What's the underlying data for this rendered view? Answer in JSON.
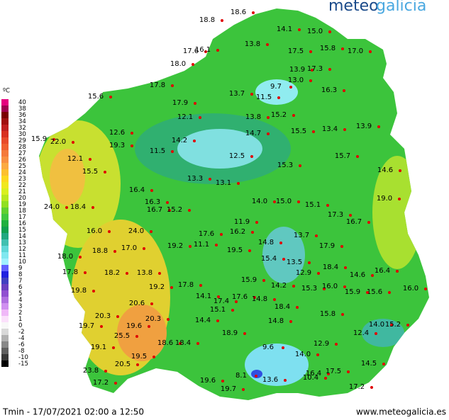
{
  "logo": {
    "part1": "meteo",
    "part2": "galicia"
  },
  "legend": {
    "unit": "ºC",
    "labels": [
      "40",
      "38",
      "36",
      "34",
      "32",
      "30",
      "29",
      "28",
      "27",
      "26",
      "25",
      "24",
      "23",
      "22",
      "21",
      "20",
      "19",
      "18",
      "17",
      "16",
      "15",
      "14",
      "13",
      "12",
      "11",
      "10",
      "9",
      "8",
      "7",
      "6",
      "5",
      "4",
      "3",
      "2",
      "1",
      "0",
      "-2",
      "-4",
      "-6",
      "-8",
      "-10",
      "-15"
    ],
    "colors": [
      "#e6007e",
      "#a0004f",
      "#7a0000",
      "#a01010",
      "#c02020",
      "#d83020",
      "#e84a2a",
      "#f06030",
      "#f47a3a",
      "#f89040",
      "#fbaa40",
      "#fcc030",
      "#fcd820",
      "#f0e820",
      "#d8f020",
      "#b8e820",
      "#90e020",
      "#60d030",
      "#40c840",
      "#20b040",
      "#10a050",
      "#20a880",
      "#40c0b0",
      "#60d8d8",
      "#80e8f0",
      "#a0f0ff",
      "#6060ff",
      "#2020e0",
      "#4040c0",
      "#6a40c0",
      "#9050d0",
      "#b070e0",
      "#d090f0",
      "#f0b8f8",
      "#fbe0fb",
      "#f8f8f8",
      "#d8d8d8",
      "#b0b0b0",
      "#888888",
      "#606060",
      "#383838",
      "#000000"
    ]
  },
  "stations": [
    "18.8",
    "18.6",
    "14.1",
    "15.0",
    "13.8",
    "17.5",
    "15.8",
    "17.0",
    "17.6",
    "16.1",
    "18.0",
    "13.9",
    "17.3",
    "13.0",
    "9.7",
    "16.3",
    "15.6",
    "17.8",
    "13.7",
    "11.5",
    "17.9",
    "15.2",
    "13.8",
    "12.1",
    "14.7",
    "15.5",
    "13.4",
    "13.9",
    "12.6",
    "14.2",
    "15.9",
    "22.0",
    "19.3",
    "11.5",
    "12.5",
    "15.7",
    "12.1",
    "15.3",
    "14.6",
    "15.5",
    "13.3",
    "13.1",
    "16.4",
    "19.0",
    "14.0",
    "15.0",
    "16.3",
    "15.1",
    "24.0",
    "18.4",
    "16.7",
    "15.2",
    "17.3",
    "16.7",
    "11.9",
    "16.0",
    "24.0",
    "16.2",
    "17.6",
    "13.7",
    "11.1",
    "17.0",
    "19.2",
    "19.5",
    "14.8",
    "17.9",
    "18.0",
    "18.8",
    "15.4",
    "13.5",
    "18.4",
    "17.8",
    "13.8",
    "12.9",
    "16.4",
    "18.2",
    "19.2",
    "17.8",
    "15.9",
    "14.2",
    "14.6",
    "15.6",
    "16.0",
    "19.8",
    "15.3",
    "16.0",
    "15.9",
    "14.1",
    "17.6",
    "14.8",
    "18.4",
    "20.6",
    "20.3",
    "17.4",
    "15.1",
    "15.8",
    "20.3",
    "14.4",
    "14.8",
    "19.7",
    "19.6",
    "14.0",
    "15.2",
    "12.4",
    "18.9",
    "25.5",
    "18.6",
    "18.4",
    "12.9",
    "9.6",
    "19.1",
    "19.5",
    "14.0",
    "14.5",
    "20.5",
    "23.8",
    "16.4",
    "17.5",
    "8.1",
    "13.6",
    "10.4",
    "19.6",
    "17.2",
    "19.7",
    "17.2"
  ],
  "footer": {
    "left": "Tmin - 17/07/2021 02:00 a 12:50",
    "right": "www.meteogalicia.es"
  }
}
